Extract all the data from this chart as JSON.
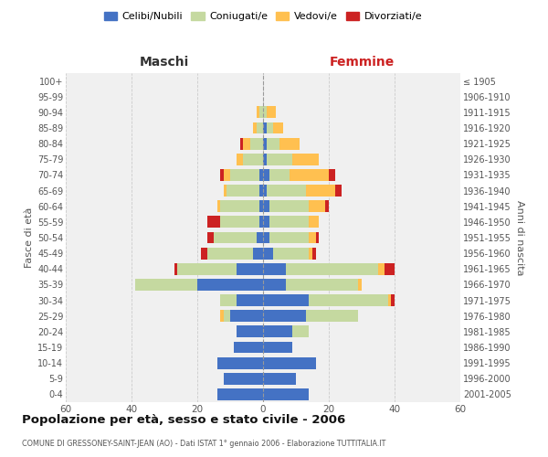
{
  "age_groups": [
    "0-4",
    "5-9",
    "10-14",
    "15-19",
    "20-24",
    "25-29",
    "30-34",
    "35-39",
    "40-44",
    "45-49",
    "50-54",
    "55-59",
    "60-64",
    "65-69",
    "70-74",
    "75-79",
    "80-84",
    "85-89",
    "90-94",
    "95-99",
    "100+"
  ],
  "birth_years": [
    "2001-2005",
    "1996-2000",
    "1991-1995",
    "1986-1990",
    "1981-1985",
    "1976-1980",
    "1971-1975",
    "1966-1970",
    "1961-1965",
    "1956-1960",
    "1951-1955",
    "1946-1950",
    "1941-1945",
    "1936-1940",
    "1931-1935",
    "1926-1930",
    "1921-1925",
    "1916-1920",
    "1911-1915",
    "1906-1910",
    "≤ 1905"
  ],
  "male": {
    "celibi": [
      14,
      12,
      14,
      9,
      8,
      10,
      8,
      20,
      8,
      3,
      2,
      1,
      1,
      1,
      1,
      0,
      0,
      0,
      0,
      0,
      0
    ],
    "coniugati": [
      0,
      0,
      0,
      0,
      0,
      2,
      5,
      19,
      18,
      14,
      13,
      12,
      12,
      10,
      9,
      6,
      4,
      2,
      1,
      0,
      0
    ],
    "vedovi": [
      0,
      0,
      0,
      0,
      0,
      1,
      0,
      0,
      0,
      0,
      0,
      0,
      1,
      1,
      2,
      2,
      2,
      1,
      1,
      0,
      0
    ],
    "divorziati": [
      0,
      0,
      0,
      0,
      0,
      0,
      0,
      0,
      1,
      2,
      2,
      4,
      0,
      0,
      1,
      0,
      1,
      0,
      0,
      0,
      0
    ]
  },
  "female": {
    "nubili": [
      14,
      10,
      16,
      9,
      9,
      13,
      14,
      7,
      7,
      3,
      2,
      2,
      2,
      1,
      2,
      1,
      1,
      1,
      0,
      0,
      0
    ],
    "coniugate": [
      0,
      0,
      0,
      0,
      5,
      16,
      24,
      22,
      28,
      11,
      12,
      12,
      12,
      12,
      6,
      8,
      4,
      2,
      1,
      0,
      0
    ],
    "vedove": [
      0,
      0,
      0,
      0,
      0,
      0,
      1,
      1,
      2,
      1,
      2,
      3,
      5,
      9,
      12,
      8,
      6,
      3,
      3,
      0,
      0
    ],
    "divorziate": [
      0,
      0,
      0,
      0,
      0,
      0,
      1,
      0,
      3,
      1,
      1,
      0,
      1,
      2,
      2,
      0,
      0,
      0,
      0,
      0,
      0
    ]
  },
  "colors": {
    "celibi": "#4472c4",
    "coniugati": "#c5d9a0",
    "vedovi": "#ffc050",
    "divorziati": "#cc2222"
  },
  "title": "Popolazione per età, sesso e stato civile - 2006",
  "subtitle": "COMUNE DI GRESSONEY-SAINT-JEAN (AO) - Dati ISTAT 1° gennaio 2006 - Elaborazione TUTTITALIA.IT",
  "xlabel_left": "Maschi",
  "xlabel_right": "Femmine",
  "ylabel_left": "Fasce di età",
  "ylabel_right": "Anni di nascita",
  "xlim": 60,
  "background_color": "#f0f0f0",
  "legend_labels": [
    "Celibi/Nubili",
    "Coniugati/e",
    "Vedovi/e",
    "Divorziati/e"
  ]
}
